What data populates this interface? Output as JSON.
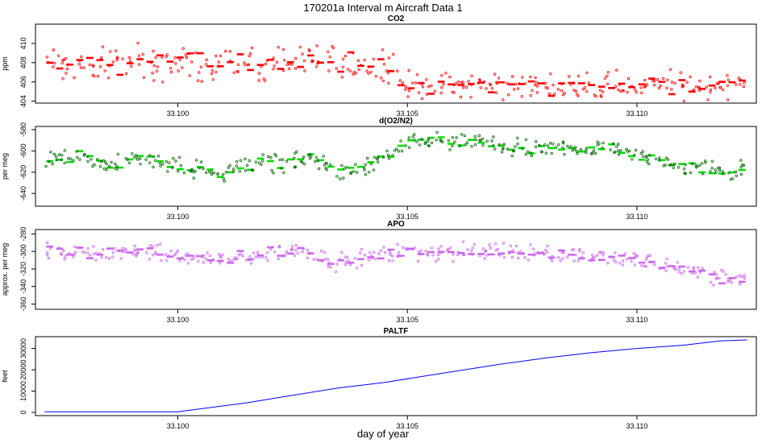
{
  "figure": {
    "title": "170201a   Interval m Aircraft Data 1",
    "xlabel": "day of year"
  },
  "chart_data": [
    {
      "type": "scatter",
      "title": "CO2",
      "ylabel": "ppm",
      "color": "#ff0000",
      "xlim": [
        33.0969,
        33.1126
      ],
      "ylim": [
        403.8,
        412.0
      ],
      "x_ticks": [
        33.1,
        33.105,
        33.11
      ],
      "x_tick_labels": [
        "33.100",
        "33.105",
        "33.110"
      ],
      "y_ticks": [
        404,
        406,
        408,
        410
      ],
      "y_tick_labels": [
        "404",
        "406",
        "408",
        "410"
      ],
      "segments": [
        {
          "x0": 33.0971,
          "x1": 33.1048,
          "mean": 407.9,
          "noise": 0.9,
          "spread": 1.6
        },
        {
          "x0": 33.1048,
          "x1": 33.1124,
          "mean": 405.6,
          "noise": 0.7,
          "spread": 1.2
        }
      ]
    },
    {
      "type": "scatter",
      "title": "d(O2/N2)",
      "ylabel": "per meg",
      "color": "#00dd00",
      "xlim": [
        33.0969,
        33.1126
      ],
      "ylim": [
        -652,
        -577
      ],
      "x_ticks": [
        33.1,
        33.105,
        33.11
      ],
      "x_tick_labels": [
        "33.100",
        "33.105",
        "33.110"
      ],
      "y_ticks": [
        -640,
        -620,
        -600,
        -580
      ],
      "y_tick_labels": [
        "-640",
        "-620",
        "-600",
        "-580"
      ],
      "profile": [
        {
          "x": 33.0971,
          "y": -609
        },
        {
          "x": 33.0978,
          "y": -604
        },
        {
          "x": 33.0985,
          "y": -614
        },
        {
          "x": 33.0992,
          "y": -608
        },
        {
          "x": 33.0999,
          "y": -613
        },
        {
          "x": 33.1003,
          "y": -617
        },
        {
          "x": 33.101,
          "y": -620
        },
        {
          "x": 33.1017,
          "y": -612
        },
        {
          "x": 33.1024,
          "y": -610
        },
        {
          "x": 33.103,
          "y": -606
        },
        {
          "x": 33.1035,
          "y": -622
        },
        {
          "x": 33.104,
          "y": -616
        },
        {
          "x": 33.1045,
          "y": -608
        },
        {
          "x": 33.105,
          "y": -594
        },
        {
          "x": 33.1055,
          "y": -590
        },
        {
          "x": 33.106,
          "y": -594
        },
        {
          "x": 33.1065,
          "y": -590
        },
        {
          "x": 33.107,
          "y": -596
        },
        {
          "x": 33.1075,
          "y": -598
        },
        {
          "x": 33.108,
          "y": -600
        },
        {
          "x": 33.1085,
          "y": -596
        },
        {
          "x": 33.109,
          "y": -598
        },
        {
          "x": 33.1095,
          "y": -597
        },
        {
          "x": 33.11,
          "y": -604
        },
        {
          "x": 33.1105,
          "y": -610
        },
        {
          "x": 33.111,
          "y": -612
        },
        {
          "x": 33.1115,
          "y": -616
        },
        {
          "x": 33.112,
          "y": -620
        },
        {
          "x": 33.1124,
          "y": -615
        }
      ],
      "noise": 4.5,
      "spread": 7
    },
    {
      "type": "scatter",
      "title": "APO",
      "ylabel": "approx. per meg",
      "color": "#cc66ee",
      "xlim": [
        33.0969,
        33.1126
      ],
      "ylim": [
        -366,
        -275
      ],
      "x_ticks": [
        33.1,
        33.105,
        33.11
      ],
      "x_tick_labels": [
        "33.100",
        "33.105",
        "33.110"
      ],
      "y_ticks": [
        -360,
        -340,
        -320,
        -300,
        -280
      ],
      "y_tick_labels": [
        "-360",
        "-340",
        "-320",
        "-300",
        "-280"
      ],
      "profile": [
        {
          "x": 33.0971,
          "y": -299
        },
        {
          "x": 33.098,
          "y": -302
        },
        {
          "x": 33.099,
          "y": -300
        },
        {
          "x": 33.1,
          "y": -306
        },
        {
          "x": 33.101,
          "y": -310
        },
        {
          "x": 33.102,
          "y": -303
        },
        {
          "x": 33.1027,
          "y": -297
        },
        {
          "x": 33.1035,
          "y": -313
        },
        {
          "x": 33.104,
          "y": -308
        },
        {
          "x": 33.105,
          "y": -300
        },
        {
          "x": 33.106,
          "y": -302
        },
        {
          "x": 33.107,
          "y": -298
        },
        {
          "x": 33.108,
          "y": -302
        },
        {
          "x": 33.109,
          "y": -305
        },
        {
          "x": 33.11,
          "y": -310
        },
        {
          "x": 33.1105,
          "y": -314
        },
        {
          "x": 33.111,
          "y": -320
        },
        {
          "x": 33.1115,
          "y": -326
        },
        {
          "x": 33.112,
          "y": -332
        },
        {
          "x": 33.1124,
          "y": -328
        }
      ],
      "noise": 5.5,
      "spread": 8
    },
    {
      "type": "line",
      "title": "PALTF",
      "ylabel": "feet",
      "color": "#0000ff",
      "xlim": [
        33.0969,
        33.1126
      ],
      "ylim": [
        -1500,
        35500
      ],
      "x_ticks": [
        33.1,
        33.105,
        33.11
      ],
      "x_tick_labels": [
        "33.100",
        "33.105",
        "33.110"
      ],
      "y_ticks": [
        0,
        10000,
        20000,
        30000
      ],
      "y_tick_labels": [
        "0",
        "10000",
        "20000",
        "30000"
      ],
      "x": [
        33.0971,
        33.1,
        33.1015,
        33.1025,
        33.1035,
        33.1045,
        33.1055,
        33.107,
        33.108,
        33.109,
        33.11,
        33.111,
        33.1118,
        33.1124
      ],
      "y": [
        300,
        300,
        4500,
        8000,
        11500,
        14000,
        17500,
        22500,
        25500,
        28000,
        30000,
        31500,
        33500,
        34000
      ]
    }
  ]
}
